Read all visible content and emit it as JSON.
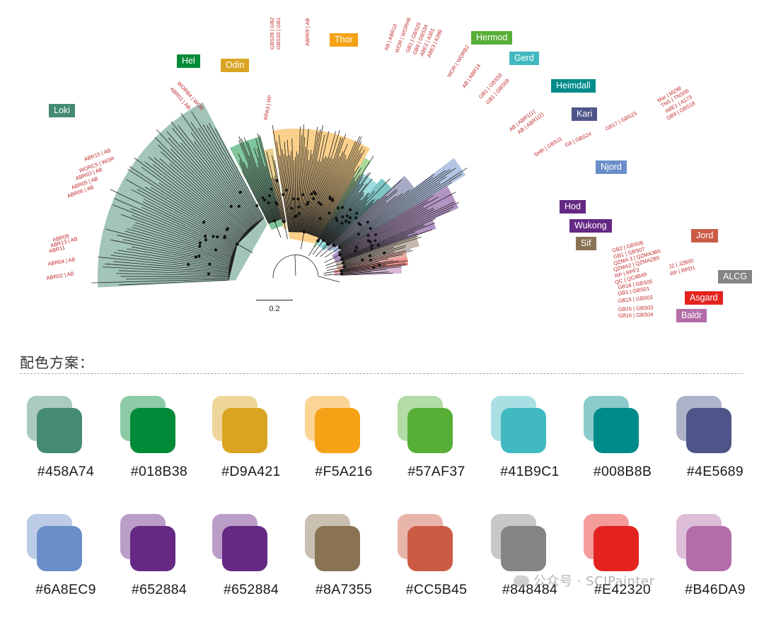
{
  "figure": {
    "scale_bar": "0.2",
    "clades": [
      {
        "name": "Loki",
        "color": "#458A74"
      },
      {
        "name": "Hel",
        "color": "#018B38"
      },
      {
        "name": "Odin",
        "color": "#D9A421"
      },
      {
        "name": "Thor",
        "color": "#F5A216"
      },
      {
        "name": "Hermod",
        "color": "#57AF37"
      },
      {
        "name": "Gerd",
        "color": "#41B9C1"
      },
      {
        "name": "Heimdall",
        "color": "#008B8B"
      },
      {
        "name": "Kari",
        "color": "#4E5689"
      },
      {
        "name": "Njord",
        "color": "#6A8EC9"
      },
      {
        "name": "Hod",
        "color": "#652884"
      },
      {
        "name": "Wukong",
        "color": "#652884"
      },
      {
        "name": "Sif",
        "color": "#8A7355"
      },
      {
        "name": "Jord",
        "color": "#CC5B45"
      },
      {
        "name": "ALCG",
        "color": "#848484"
      },
      {
        "name": "Asgard",
        "color": "#E42320"
      },
      {
        "name": "Baldr",
        "color": "#B46DA9"
      }
    ],
    "tip_labels": [
      "GBS33 | GB1",
      "GBS28 | GB2",
      "ABR09 | AB",
      "AB | ABR10",
      "WOR | WORH6",
      "GB1 | GBS29",
      "GB9 | GBS34",
      "ABE2 | A361",
      "ABE3 | A399",
      "WOR | WORB2",
      "AB | ABR14",
      "GB1 | GBS58",
      "GB1 | GBS59",
      "WORB4 | WOR",
      "ABR01 | AB",
      "RPA3 | RP",
      "ABR15 | AB",
      "WORC5 | WOR",
      "ABR03 | AB",
      "ABR05 | AB",
      "ABR06 | AB",
      "ABR08",
      "ABR13 | AB",
      "ABR11",
      "ABR04 | AB",
      "ABR02 | AB",
      "AB | ABR1(1)",
      "AB | ABR1(2)",
      "SHR | GBS11",
      "G9 | GBS24",
      "GB17 | GBS23",
      "Mar | M298",
      "TNS | TNS06",
      "ABE1 | A173",
      "GB9 | GBS18",
      "GB2 | GBS06",
      "GB1 | GBS07",
      "QZMA 3 | QZMA3B5",
      "QZMA2 | QZMA2B5",
      "RP | RPF2",
      "QC | QC4B49",
      "JZ | JZB50",
      "RP | RPD1",
      "GB16 | GBS05",
      "GB1 | GBS01",
      "GB15 | GBS02",
      "GB15 | GBS03",
      "GB16 | GBS04"
    ]
  },
  "palette": {
    "title": "配色方案：",
    "colors": [
      "#458A74",
      "#018B38",
      "#D9A421",
      "#F5A216",
      "#57AF37",
      "#41B9C1",
      "#008B8B",
      "#4E5689",
      "#6A8EC9",
      "#652884",
      "#652884",
      "#8A7355",
      "#CC5B45",
      "#848484",
      "#E42320",
      "#B46DA9"
    ]
  },
  "watermark": "公众号 · SCIPainter"
}
